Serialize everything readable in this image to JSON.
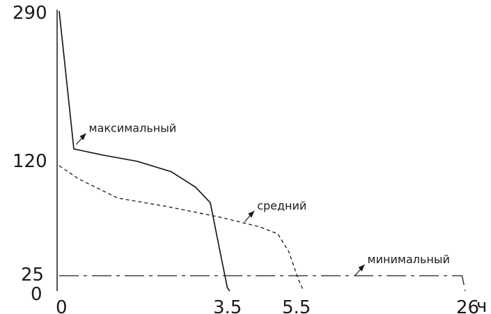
{
  "chart_data": {
    "type": "line",
    "title": "",
    "xlabel": "",
    "ylabel": "",
    "x_unit": "ч",
    "x_ticks": [
      "0",
      "3.5",
      "5.5",
      "26"
    ],
    "y_ticks": [
      "290",
      "120",
      "25",
      "0"
    ],
    "grid": false,
    "legend": "none",
    "series": [
      {
        "name": "максимальный",
        "style": "solid",
        "color": "#1a1a1a",
        "points": [
          {
            "x": 0.0,
            "y": 290
          },
          {
            "x": 0.3,
            "y": 135
          },
          {
            "x": 0.9,
            "y": 128
          },
          {
            "x": 1.6,
            "y": 121
          },
          {
            "x": 2.3,
            "y": 112
          },
          {
            "x": 2.8,
            "y": 99
          },
          {
            "x": 3.1,
            "y": 86
          },
          {
            "x": 3.3,
            "y": 45
          },
          {
            "x": 3.45,
            "y": 5
          },
          {
            "x": 3.5,
            "y": 0
          }
        ]
      },
      {
        "name": "средний",
        "style": "dashed",
        "color": "#1a1a1a",
        "points": [
          {
            "x": 0.0,
            "y": 117
          },
          {
            "x": 0.4,
            "y": 106
          },
          {
            "x": 1.2,
            "y": 90
          },
          {
            "x": 2.2,
            "y": 83
          },
          {
            "x": 3.3,
            "y": 74
          },
          {
            "x": 4.3,
            "y": 66
          },
          {
            "x": 4.8,
            "y": 60
          },
          {
            "x": 5.1,
            "y": 45
          },
          {
            "x": 5.35,
            "y": 20
          },
          {
            "x": 5.5,
            "y": 0
          }
        ]
      },
      {
        "name": "минимальный",
        "style": "dashdot",
        "color": "#1a1a1a",
        "points": [
          {
            "x": 0.0,
            "y": 25
          },
          {
            "x": 25.6,
            "y": 25
          },
          {
            "x": 26.0,
            "y": 0
          }
        ]
      }
    ],
    "annotations": [
      {
        "text": "максимальный",
        "series": "максимальный",
        "x": 0.35,
        "y": 140
      },
      {
        "text": "средний",
        "series": "средний",
        "x": 3.9,
        "y": 70
      },
      {
        "text": "минимальный",
        "series": "минимальный",
        "x": 12.0,
        "y": 25
      }
    ]
  }
}
